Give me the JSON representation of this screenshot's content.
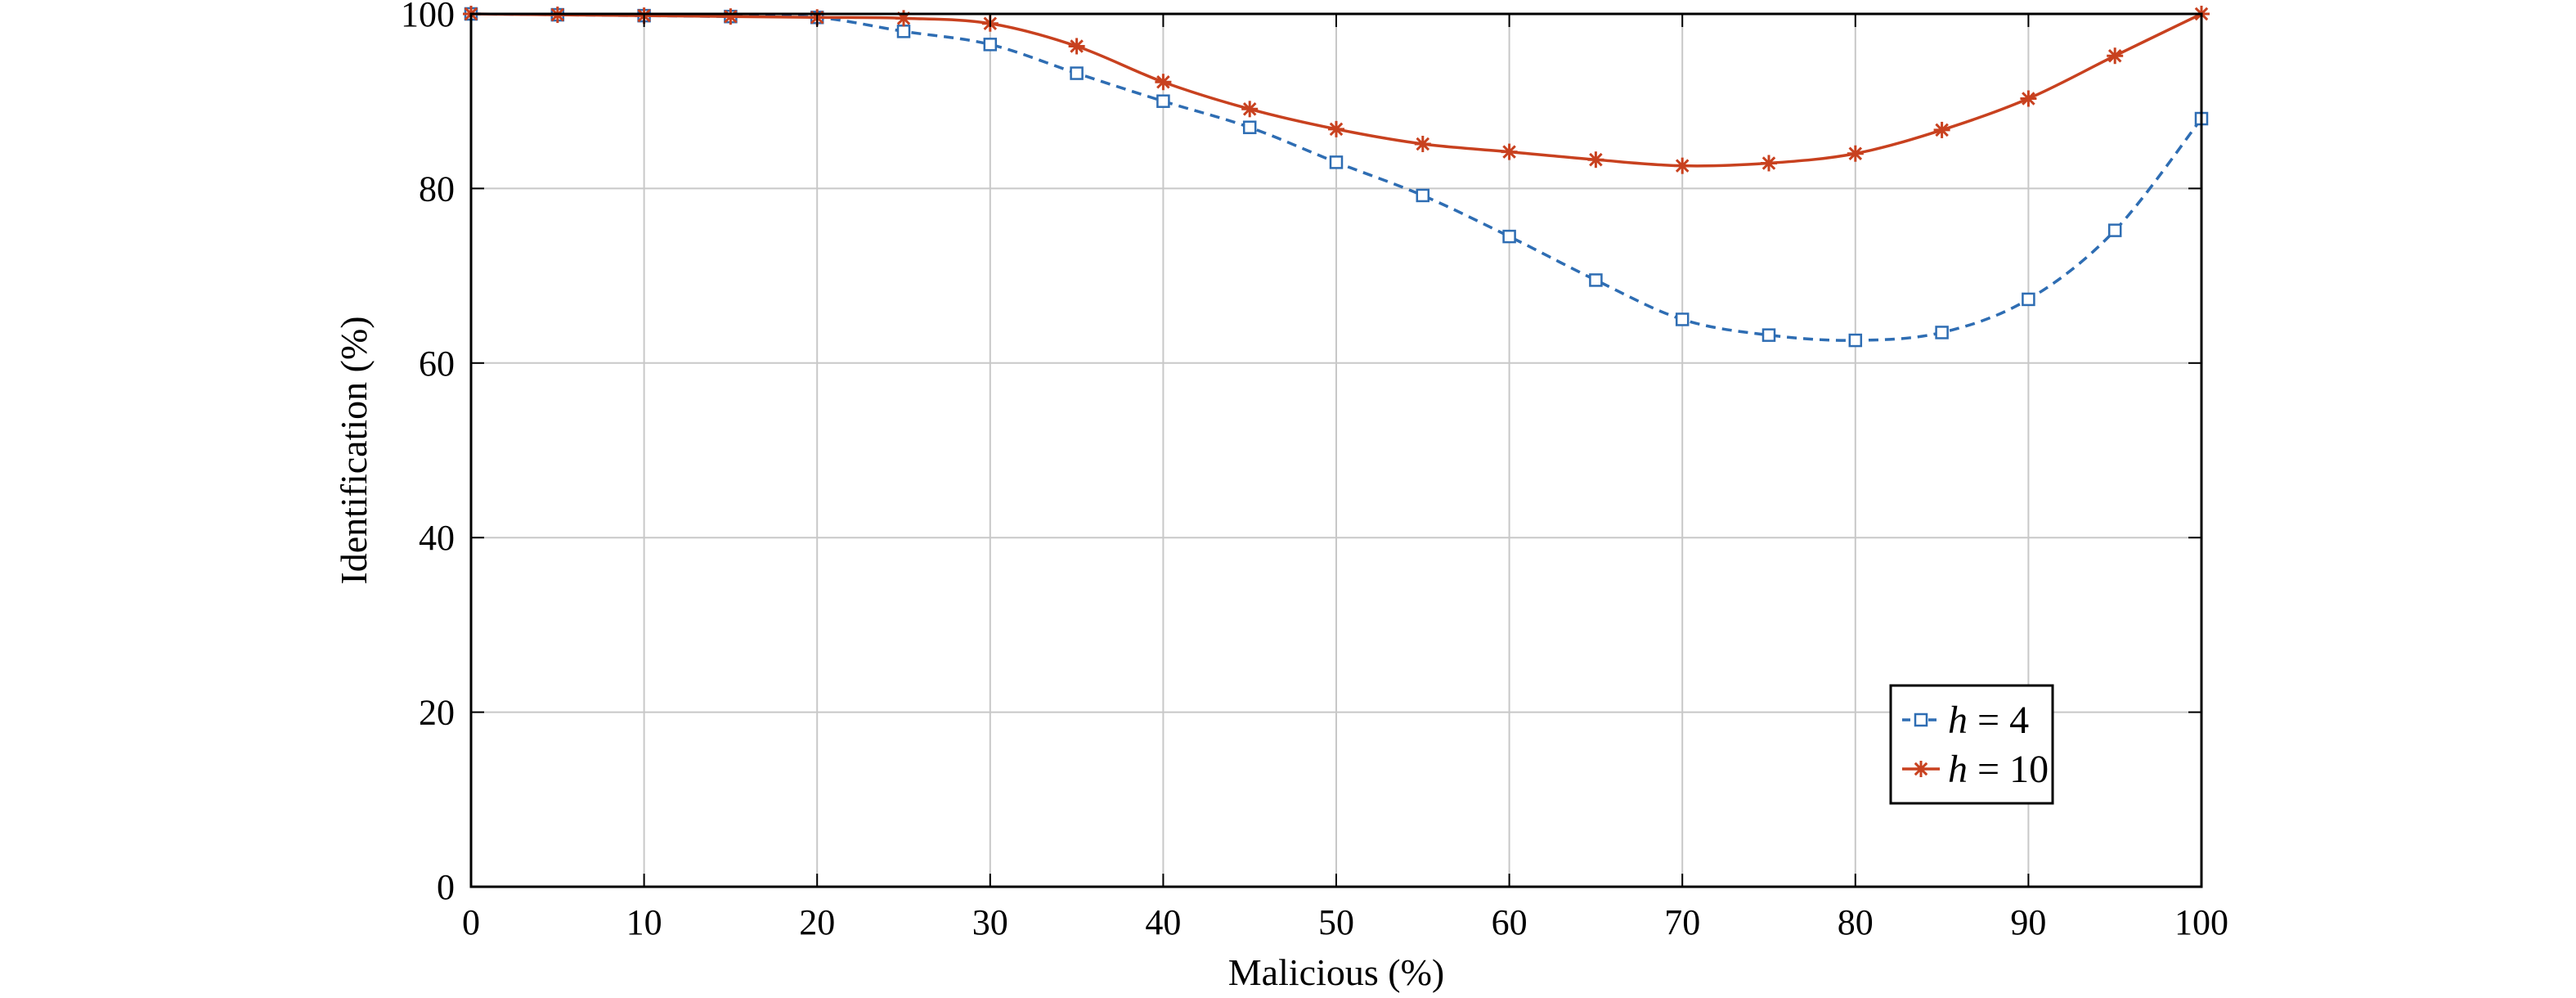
{
  "chart_data": {
    "type": "line",
    "title": "",
    "xlabel": "Malicious (%)",
    "ylabel": "Identification (%)",
    "xlim": [
      0,
      100
    ],
    "ylim": [
      0,
      100
    ],
    "xticks": [
      0,
      10,
      20,
      30,
      40,
      50,
      60,
      70,
      80,
      90,
      100
    ],
    "yticks": [
      0,
      20,
      40,
      60,
      80,
      100
    ],
    "grid": true,
    "legend_position": "bottom-right",
    "x": [
      0,
      5,
      10,
      15,
      20,
      25,
      30,
      35,
      40,
      45,
      50,
      55,
      60,
      65,
      70,
      75,
      80,
      85,
      90,
      95,
      100
    ],
    "series": [
      {
        "name": "h = 4",
        "name_symbol": "h",
        "name_rest": " = 4",
        "color": "#2e6db3",
        "line_style": "dashed",
        "marker": "square",
        "values": [
          100,
          99.9,
          99.8,
          99.7,
          99.6,
          98.0,
          96.5,
          93.2,
          90.0,
          87.0,
          83.0,
          79.2,
          74.5,
          69.5,
          65.0,
          63.2,
          62.6,
          63.5,
          67.3,
          75.2,
          88.0
        ]
      },
      {
        "name": "h = 10",
        "name_symbol": "h",
        "name_rest": " = 10",
        "color": "#c8411f",
        "line_style": "solid",
        "marker": "asterisk",
        "values": [
          100,
          99.9,
          99.8,
          99.7,
          99.6,
          99.5,
          98.9,
          96.3,
          92.2,
          89.1,
          86.8,
          85.1,
          84.2,
          83.3,
          82.6,
          82.9,
          84.0,
          86.7,
          90.3,
          95.2,
          100
        ]
      }
    ]
  }
}
